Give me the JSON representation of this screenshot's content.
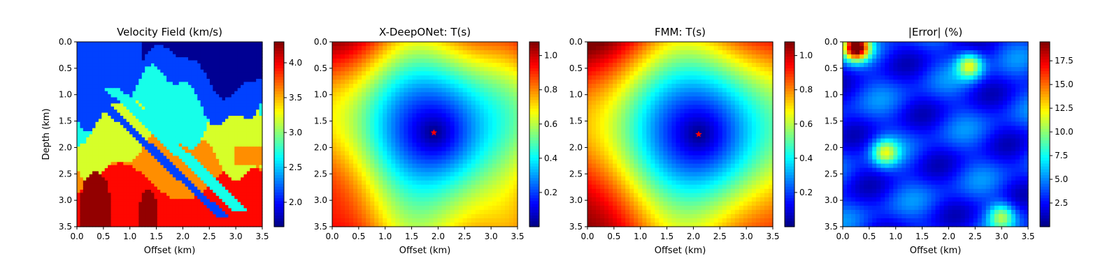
{
  "chart_data": [
    {
      "type": "heatmap",
      "title": "Velocity Field (km/s)",
      "xlabel": "Offset (km)",
      "ylabel": "Depth (km)",
      "xlim": [
        0.0,
        3.5
      ],
      "ylim": [
        3.5,
        0.0
      ],
      "xticks": [
        "0.0",
        "0.5",
        "1.0",
        "1.5",
        "2.0",
        "2.5",
        "3.0",
        "3.5"
      ],
      "yticks": [
        "0.0",
        "0.5",
        "1.0",
        "1.5",
        "2.0",
        "2.5",
        "3.0",
        "3.5"
      ],
      "colormap": "jet",
      "colorbar": {
        "min": 1.65,
        "max": 4.3,
        "ticks": [
          "2.0",
          "2.5",
          "3.0",
          "3.5",
          "4.0"
        ]
      },
      "layers": [
        {
          "description": "top layer",
          "velocity": 1.7
        },
        {
          "description": "upper blue layer",
          "velocity": 2.15
        },
        {
          "description": "cyan/green layer",
          "velocity": 2.7
        },
        {
          "description": "yellow-green layer",
          "velocity": 3.2
        },
        {
          "description": "orange layer",
          "velocity": 3.6
        },
        {
          "description": "red layer",
          "velocity": 3.95
        },
        {
          "description": "deep dark red bodies",
          "velocity": 4.25
        }
      ]
    },
    {
      "type": "heatmap",
      "title": "X-DeepONet: T(s)",
      "xlabel": "Offset (km)",
      "ylabel": "",
      "xlim": [
        0.0,
        3.5
      ],
      "ylim": [
        3.5,
        0.0
      ],
      "xticks": [
        "0.0",
        "0.5",
        "1.0",
        "1.5",
        "2.0",
        "2.5",
        "3.0",
        "3.5"
      ],
      "yticks": [
        "0.0",
        "0.5",
        "1.0",
        "1.5",
        "2.0",
        "2.5",
        "3.0",
        "3.5"
      ],
      "colormap": "jet",
      "colorbar": {
        "min": 0.0,
        "max": 1.08,
        "ticks": [
          "0.2",
          "0.4",
          "0.6",
          "0.8",
          "1.0"
        ]
      },
      "source": {
        "x": 1.92,
        "y": 1.72,
        "marker": "red-star"
      }
    },
    {
      "type": "heatmap",
      "title": "FMM: T(s)",
      "xlabel": "Offset (km)",
      "ylabel": "",
      "xlim": [
        0.0,
        3.5
      ],
      "ylim": [
        3.5,
        0.0
      ],
      "xticks": [
        "0.0",
        "0.5",
        "1.0",
        "1.5",
        "2.0",
        "2.5",
        "3.0",
        "3.5"
      ],
      "yticks": [
        "0.0",
        "0.5",
        "1.0",
        "1.5",
        "2.0",
        "2.5",
        "3.0",
        "3.5"
      ],
      "colormap": "jet",
      "colorbar": {
        "min": 0.0,
        "max": 1.08,
        "ticks": [
          "0.2",
          "0.4",
          "0.6",
          "0.8",
          "1.0"
        ]
      },
      "source": {
        "x": 2.1,
        "y": 1.75,
        "marker": "red-star"
      }
    },
    {
      "type": "heatmap",
      "title": "|Error| (%)",
      "xlabel": "Offset (km)",
      "ylabel": "",
      "xlim": [
        0.0,
        3.5
      ],
      "ylim": [
        3.5,
        0.0
      ],
      "xticks": [
        "0.0",
        "0.5",
        "1.0",
        "1.5",
        "2.0",
        "2.5",
        "3.0",
        "3.5"
      ],
      "yticks": [
        "0.0",
        "0.5",
        "1.0",
        "1.5",
        "2.0",
        "2.5",
        "3.0",
        "3.5"
      ],
      "colormap": "jet",
      "colorbar": {
        "min": 0.0,
        "max": 19.5,
        "ticks": [
          "2.5",
          "5.0",
          "7.5",
          "10.0",
          "12.5",
          "15.0",
          "17.5"
        ]
      },
      "hotspots": [
        {
          "x": 0.25,
          "y": 0.1,
          "value": 17.0
        },
        {
          "x": 2.4,
          "y": 0.45,
          "value": 8.5
        },
        {
          "x": 0.8,
          "y": 2.1,
          "value": 7.0
        },
        {
          "x": 3.0,
          "y": 3.3,
          "value": 6.5
        }
      ]
    }
  ]
}
